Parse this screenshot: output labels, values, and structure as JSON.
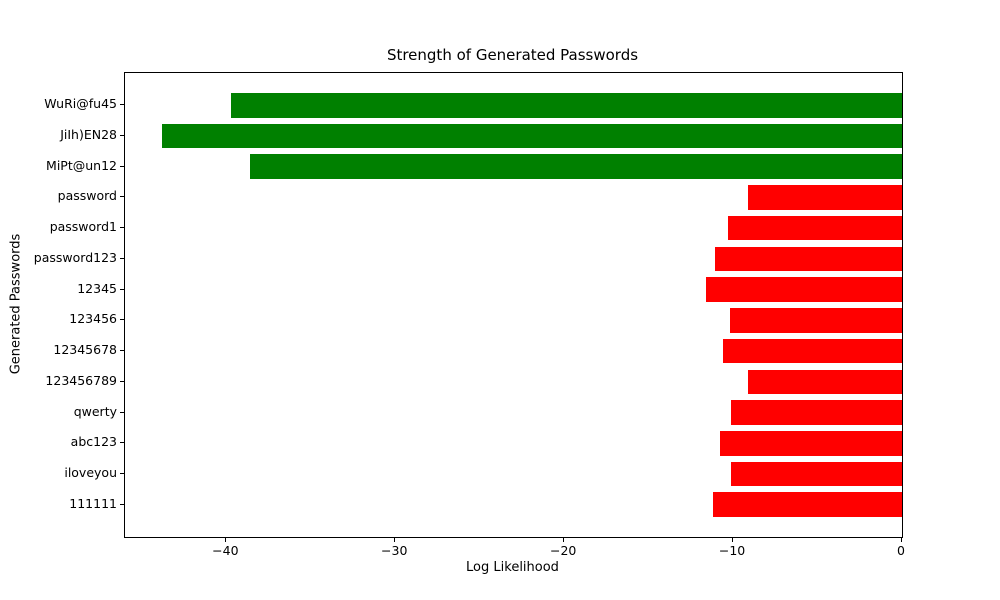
{
  "chart_data": {
    "type": "bar",
    "orientation": "horizontal",
    "title": "Strength of Generated Passwords",
    "xlabel": "Log Likelihood",
    "ylabel": "Generated Passwords",
    "categories": [
      "WuRi@fu45",
      "JiIh)EN28",
      "MiPt@un12",
      "password",
      "password1",
      "password123",
      "12345",
      "123456",
      "12345678",
      "123456789",
      "qwerty",
      "abc123",
      "iloveyou",
      "111111"
    ],
    "values": [
      -39.7,
      -43.8,
      -38.6,
      -9.1,
      -10.3,
      -11.1,
      -11.6,
      -10.2,
      -10.6,
      -9.1,
      -10.1,
      -10.8,
      -10.1,
      -11.2
    ],
    "bar_colors": [
      "#008000",
      "#008000",
      "#008000",
      "#ff0000",
      "#ff0000",
      "#ff0000",
      "#ff0000",
      "#ff0000",
      "#ff0000",
      "#ff0000",
      "#ff0000",
      "#ff0000",
      "#ff0000",
      "#ff0000"
    ],
    "green_hex": "#008000",
    "red_hex": "#ff0000",
    "xlim": [
      -46,
      0
    ],
    "x_ticks": [
      -40,
      -30,
      -20,
      -10,
      0
    ],
    "x_tick_labels": [
      "−40",
      "−30",
      "−20",
      "−10",
      "0"
    ],
    "bar_height_fraction": 0.8,
    "grid": false,
    "legend": null
  }
}
